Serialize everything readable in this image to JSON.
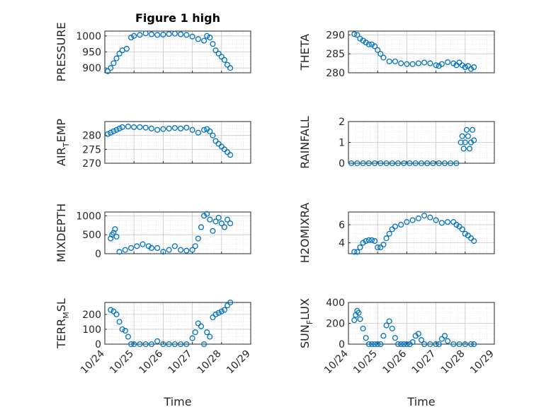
{
  "title": "Figure 1 high",
  "xlabel": "Time",
  "marker_color": "#0072BD",
  "x_ticks": [
    "10/24",
    "10/25",
    "10/26",
    "10/27",
    "10/28",
    "10/29"
  ],
  "x_range_days": [
    24,
    29
  ],
  "chart_data": [
    {
      "type": "scatter",
      "ylabel": "PRESSURE",
      "ylim": [
        885,
        1015
      ],
      "yticks": [
        900,
        950,
        1000
      ],
      "grid": true,
      "x": [
        24.1,
        24.2,
        24.3,
        24.4,
        24.5,
        24.6,
        24.75,
        24.9,
        25.0,
        25.2,
        25.4,
        25.6,
        25.8,
        26.0,
        26.2,
        26.4,
        26.6,
        26.8,
        27.0,
        27.2,
        27.4,
        27.5,
        27.6,
        27.7,
        27.8,
        27.9,
        28.0,
        28.1,
        28.2,
        28.3
      ],
      "y": [
        890,
        900,
        915,
        930,
        945,
        955,
        960,
        995,
        1000,
        1003,
        1008,
        1005,
        1003,
        1004,
        1006,
        1007,
        1005,
        1003,
        998,
        990,
        985,
        1000,
        995,
        975,
        955,
        945,
        935,
        925,
        910,
        900
      ]
    },
    {
      "type": "scatter",
      "ylabel": "THETA",
      "ylim": [
        280,
        291
      ],
      "yticks": [
        280,
        285,
        290
      ],
      "grid": true,
      "x": [
        24.2,
        24.3,
        24.4,
        24.5,
        24.6,
        24.7,
        24.8,
        24.9,
        25.0,
        25.1,
        25.2,
        25.4,
        25.6,
        25.8,
        26.0,
        26.2,
        26.4,
        26.6,
        26.8,
        27.0,
        27.1,
        27.2,
        27.4,
        27.6,
        27.7,
        27.8,
        27.9,
        28.0,
        28.1,
        28.2,
        28.3
      ],
      "y": [
        290.2,
        290,
        289,
        288.5,
        288,
        287.5,
        287.5,
        287,
        286,
        285,
        284,
        283,
        283,
        282.5,
        282.3,
        282.3,
        282.5,
        282.7,
        282.5,
        282,
        281.8,
        282.3,
        282.8,
        282.5,
        282,
        282.7,
        282,
        281.5,
        281.8,
        281,
        281.5
      ]
    },
    {
      "type": "scatter",
      "ylabel": "AIR_TEMP",
      "ylabel_sub": "T",
      "ylim": [
        270,
        285
      ],
      "yticks": [
        270,
        275,
        280
      ],
      "grid": true,
      "x": [
        24.1,
        24.2,
        24.3,
        24.4,
        24.5,
        24.6,
        24.8,
        25.0,
        25.2,
        25.4,
        25.6,
        25.8,
        26.0,
        26.2,
        26.4,
        26.6,
        26.8,
        27.0,
        27.2,
        27.4,
        27.5,
        27.6,
        27.7,
        27.8,
        27.9,
        28.0,
        28.1,
        28.2,
        28.3
      ],
      "y": [
        280.5,
        281,
        281.5,
        282,
        282.5,
        283,
        283.2,
        283,
        283,
        282.8,
        282.5,
        282,
        282.3,
        282.5,
        282.7,
        282.5,
        282.8,
        282,
        281,
        282,
        282.3,
        281.5,
        280,
        278,
        277,
        276,
        275,
        274,
        273
      ]
    },
    {
      "type": "scatter",
      "ylabel": "RAINFALL",
      "ylim": [
        0,
        2
      ],
      "yticks": [
        0,
        1,
        2
      ],
      "grid": true,
      "x": [
        24.1,
        24.3,
        24.5,
        24.7,
        24.9,
        25.1,
        25.3,
        25.5,
        25.7,
        25.9,
        26.1,
        26.3,
        26.5,
        26.7,
        26.9,
        27.1,
        27.3,
        27.5,
        27.7,
        27.85,
        27.9,
        27.95,
        28.0,
        28.05,
        28.1,
        28.15,
        28.2,
        28.25,
        28.3
      ],
      "y": [
        0,
        0,
        0,
        0,
        0,
        0,
        0,
        0,
        0,
        0,
        0,
        0,
        0,
        0,
        0,
        0,
        0,
        0,
        0,
        1.0,
        1.3,
        0.7,
        1.0,
        1.6,
        1.3,
        0.7,
        1.0,
        1.6,
        1.1
      ]
    },
    {
      "type": "scatter",
      "ylabel": "MIXDEPTH",
      "ylim": [
        0,
        1100
      ],
      "yticks": [
        0,
        500,
        1000
      ],
      "grid": true,
      "x": [
        24.2,
        24.25,
        24.3,
        24.35,
        24.4,
        24.5,
        24.7,
        24.9,
        25.1,
        25.3,
        25.5,
        25.6,
        25.8,
        26.0,
        26.2,
        26.4,
        26.6,
        26.8,
        27.0,
        27.1,
        27.2,
        27.3,
        27.4,
        27.5,
        27.6,
        27.7,
        27.8,
        27.9,
        28.0,
        28.1,
        28.2,
        28.3
      ],
      "y": [
        400,
        500,
        550,
        650,
        450,
        50,
        100,
        150,
        200,
        250,
        200,
        150,
        150,
        50,
        100,
        200,
        100,
        80,
        100,
        200,
        400,
        700,
        1000,
        1050,
        900,
        600,
        850,
        950,
        800,
        700,
        900,
        800
      ]
    },
    {
      "type": "scatter",
      "ylabel": "H2OMIXRA",
      "ylim": [
        2.8,
        7.4
      ],
      "yticks": [
        4,
        6
      ],
      "grid": true,
      "x": [
        24.2,
        24.3,
        24.4,
        24.5,
        24.6,
        24.7,
        24.8,
        24.9,
        25.0,
        25.1,
        25.2,
        25.3,
        25.4,
        25.5,
        25.6,
        25.8,
        26.0,
        26.2,
        26.4,
        26.6,
        26.8,
        27.0,
        27.2,
        27.4,
        27.6,
        27.7,
        27.8,
        27.9,
        28.0,
        28.1,
        28.2,
        28.3
      ],
      "y": [
        3.0,
        3.0,
        3.5,
        4.0,
        4.2,
        4.3,
        4.3,
        4.2,
        3.5,
        3.5,
        3.8,
        4.5,
        5.0,
        5.5,
        5.8,
        6.0,
        6.3,
        6.5,
        6.7,
        7.0,
        6.8,
        6.5,
        6.2,
        6.3,
        6.3,
        6.0,
        5.8,
        5.5,
        5.0,
        4.8,
        4.5,
        4.2
      ]
    },
    {
      "type": "scatter",
      "ylabel": "TERR_MSL",
      "ylabel_sub": "M",
      "ylim": [
        0,
        280
      ],
      "yticks": [
        0,
        100,
        200
      ],
      "grid": true,
      "x": [
        24.2,
        24.3,
        24.4,
        24.5,
        24.6,
        24.7,
        24.8,
        24.9,
        25.0,
        25.2,
        25.4,
        25.6,
        25.8,
        26.0,
        26.2,
        26.4,
        26.6,
        26.8,
        27.0,
        27.1,
        27.2,
        27.3,
        27.4,
        27.5,
        27.6,
        27.7,
        27.8,
        27.9,
        28.0,
        28.1,
        28.2,
        28.3
      ],
      "y": [
        230,
        220,
        200,
        150,
        100,
        90,
        50,
        0,
        0,
        0,
        0,
        0,
        20,
        0,
        0,
        0,
        0,
        0,
        40,
        80,
        140,
        120,
        0,
        80,
        50,
        180,
        200,
        210,
        220,
        230,
        260,
        280
      ]
    },
    {
      "type": "scatter",
      "ylabel": "SUN_FLUX",
      "ylabel_sub": "F",
      "ylim": [
        0,
        400
      ],
      "yticks": [
        0,
        200,
        400
      ],
      "grid": true,
      "x": [
        24.2,
        24.25,
        24.3,
        24.35,
        24.4,
        24.5,
        24.6,
        24.7,
        24.8,
        24.9,
        25.0,
        25.1,
        25.2,
        25.3,
        25.4,
        25.5,
        25.6,
        25.7,
        25.8,
        25.9,
        26.0,
        26.1,
        26.2,
        26.3,
        26.4,
        26.5,
        26.6,
        26.8,
        27.0,
        27.1,
        27.2,
        27.3,
        27.4,
        27.6,
        27.8,
        28.0,
        28.2,
        28.3
      ],
      "y": [
        230,
        280,
        320,
        300,
        240,
        150,
        60,
        0,
        0,
        0,
        0,
        0,
        80,
        180,
        220,
        150,
        60,
        0,
        0,
        0,
        0,
        0,
        20,
        80,
        100,
        40,
        0,
        0,
        0,
        0,
        50,
        80,
        30,
        0,
        0,
        0,
        0,
        0
      ]
    }
  ]
}
